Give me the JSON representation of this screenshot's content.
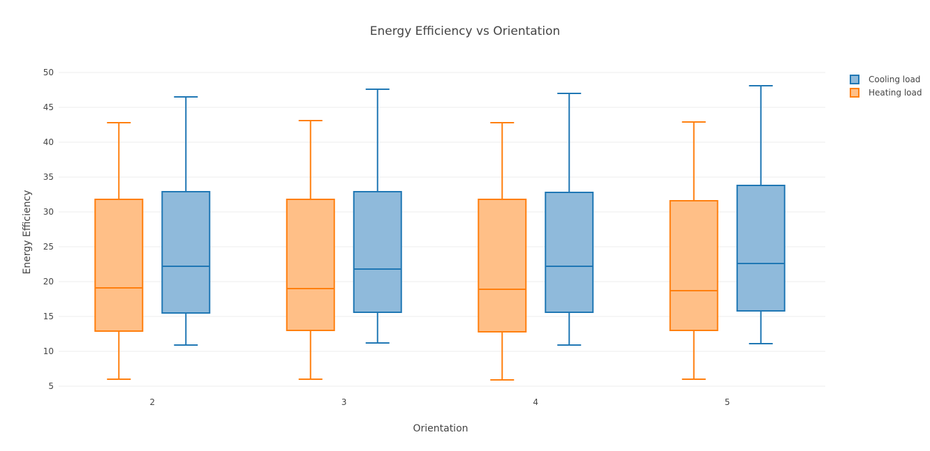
{
  "chart_data": {
    "type": "box",
    "title": "Energy Efficiency vs Orientation",
    "xlabel": "Orientation",
    "ylabel": "Energy Efficiency",
    "categories": [
      "2",
      "3",
      "4",
      "5"
    ],
    "ylim": [
      5,
      50
    ],
    "yticks": [
      5,
      10,
      15,
      20,
      25,
      30,
      35,
      40,
      45,
      50
    ],
    "grid": true,
    "legend": "top-right",
    "series": [
      {
        "name": "Heating load",
        "color": "#ff7f0e",
        "fill": "#ffbf87",
        "boxes": [
          {
            "min": 6.0,
            "q1": 12.9,
            "median": 19.1,
            "q3": 31.8,
            "max": 42.8
          },
          {
            "min": 6.0,
            "q1": 13.0,
            "median": 19.0,
            "q3": 31.8,
            "max": 43.1
          },
          {
            "min": 5.9,
            "q1": 12.8,
            "median": 18.9,
            "q3": 31.8,
            "max": 42.8
          },
          {
            "min": 6.0,
            "q1": 13.0,
            "median": 18.7,
            "q3": 31.6,
            "max": 42.9
          }
        ]
      },
      {
        "name": "Cooling load",
        "color": "#1f77b4",
        "fill": "#8fbadb",
        "boxes": [
          {
            "min": 10.9,
            "q1": 15.5,
            "median": 22.2,
            "q3": 32.9,
            "max": 46.5
          },
          {
            "min": 11.2,
            "q1": 15.6,
            "median": 21.8,
            "q3": 32.9,
            "max": 47.6
          },
          {
            "min": 10.9,
            "q1": 15.6,
            "median": 22.2,
            "q3": 32.8,
            "max": 47.0
          },
          {
            "min": 11.1,
            "q1": 15.8,
            "median": 22.6,
            "q3": 33.8,
            "max": 48.1
          }
        ]
      }
    ],
    "legend_order": [
      "Cooling load",
      "Heating load"
    ]
  }
}
